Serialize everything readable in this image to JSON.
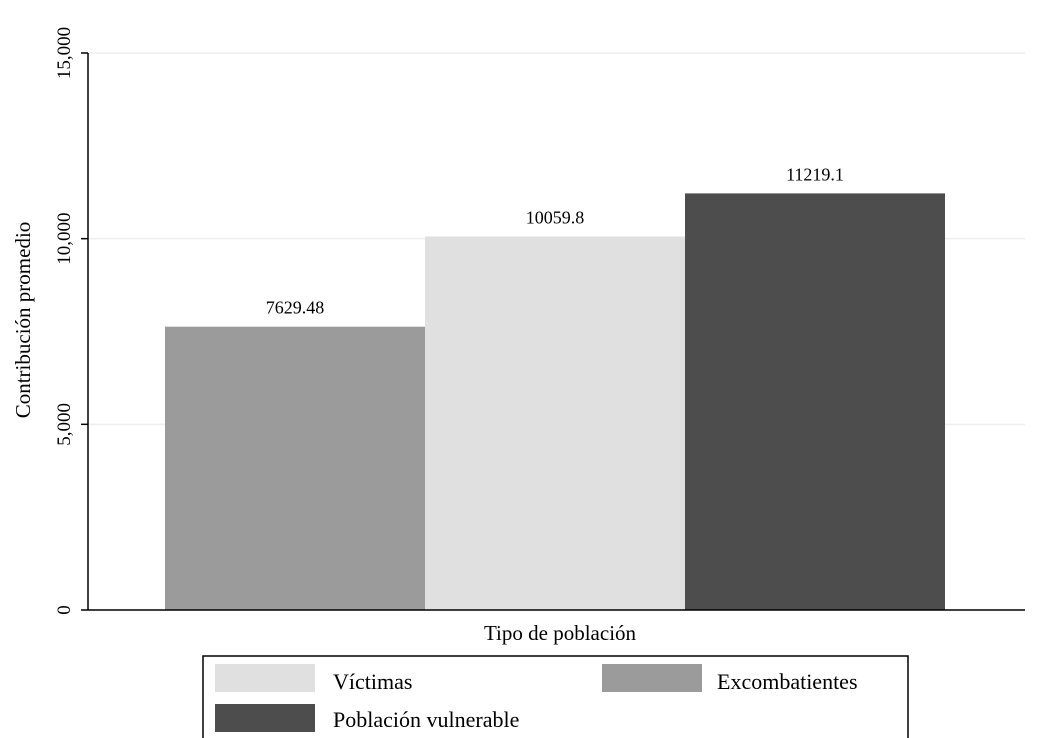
{
  "chart_data": {
    "type": "bar",
    "title": "",
    "xlabel": "Tipo de población",
    "ylabel": "Contribución promedio",
    "ylim": [
      0,
      15000
    ],
    "yticks": [
      0,
      5000,
      10000,
      15000
    ],
    "ytick_labels": [
      "0",
      "5,000",
      "10,000",
      "15,000"
    ],
    "grid": true,
    "legend_position": "bottom",
    "series": [
      {
        "name": "Excombatientes",
        "value": 7629.48,
        "label": "7629.48",
        "color": "#9b9b9b"
      },
      {
        "name": "Víctimas",
        "value": 10059.8,
        "label": "10059.8",
        "color": "#e0e0e0"
      },
      {
        "name": "Población vulnerable",
        "value": 11219.1,
        "label": "11219.1",
        "color": "#4d4d4d"
      }
    ],
    "legend": [
      {
        "name": "Víctimas",
        "color": "#e0e0e0"
      },
      {
        "name": "Excombatientes",
        "color": "#9b9b9b"
      },
      {
        "name": "Población vulnerable",
        "color": "#4d4d4d"
      }
    ]
  }
}
